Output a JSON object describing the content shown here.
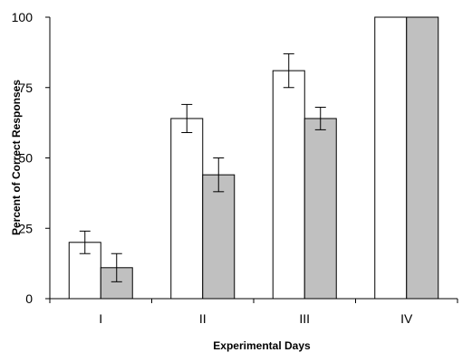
{
  "chart_data": {
    "type": "bar",
    "title": "",
    "xlabel": "Experimental Days",
    "ylabel": "Percent of Correct Responses",
    "categories": [
      "I",
      "II",
      "III",
      "IV"
    ],
    "ylim": [
      0,
      100
    ],
    "yticks": [
      0,
      25,
      50,
      75,
      100
    ],
    "grid": false,
    "legend": "none",
    "series": [
      {
        "color": "#ffffff",
        "values": [
          20,
          64,
          81,
          100
        ],
        "error": [
          4,
          5,
          6,
          0
        ]
      },
      {
        "color": "#c0c0c0",
        "values": [
          11,
          44,
          64,
          100
        ],
        "error": [
          5,
          6,
          4,
          0
        ]
      }
    ]
  }
}
